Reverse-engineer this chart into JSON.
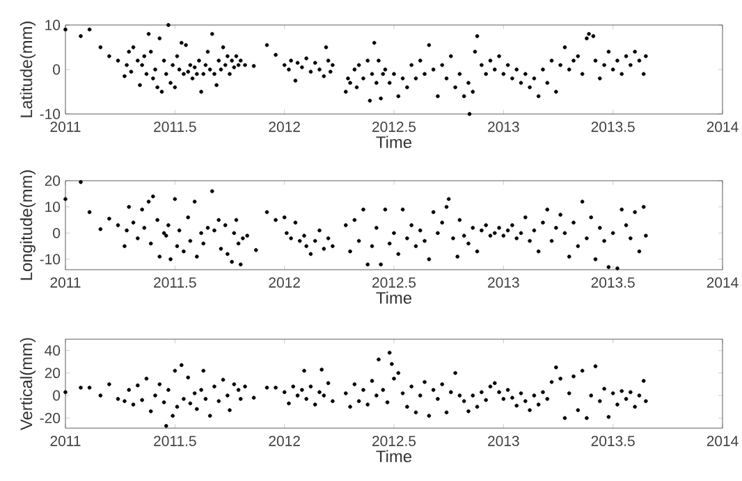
{
  "chart_data": [
    {
      "type": "scatter",
      "xlabel": "Time",
      "ylabel": "Latitude(mm)",
      "marker": "circle",
      "xlim": [
        2011,
        2014
      ],
      "xticks": [
        2011,
        2011.5,
        2012,
        2012.5,
        2013,
        2013.5,
        2014
      ],
      "ylim": [
        -10,
        10
      ],
      "yticks": [
        -10,
        0,
        10
      ],
      "series": [
        {
          "color": "#000000",
          "x": [
            2011.0,
            2011.07,
            2011.11,
            2011.16,
            2011.2,
            2011.24,
            2011.27,
            2011.28,
            2011.29,
            2011.3,
            2011.31,
            2011.33,
            2011.34,
            2011.35,
            2011.36,
            2011.37,
            2011.38,
            2011.39,
            2011.4,
            2011.41,
            2011.42,
            2011.43,
            2011.44,
            2011.45,
            2011.46,
            2011.47,
            2011.48,
            2011.49,
            2011.5,
            2011.51,
            2011.52,
            2011.53,
            2011.54,
            2011.55,
            2011.56,
            2011.57,
            2011.58,
            2011.59,
            2011.6,
            2011.61,
            2011.62,
            2011.63,
            2011.64,
            2011.65,
            2011.66,
            2011.67,
            2011.68,
            2011.69,
            2011.7,
            2011.71,
            2011.72,
            2011.73,
            2011.74,
            2011.75,
            2011.76,
            2011.77,
            2011.78,
            2011.79,
            2011.8,
            2011.82,
            2011.86,
            2011.92,
            2011.96,
            2012.0,
            2012.02,
            2012.03,
            2012.05,
            2012.06,
            2012.08,
            2012.1,
            2012.12,
            2012.14,
            2012.16,
            2012.18,
            2012.19,
            2012.2,
            2012.21,
            2012.22,
            2012.28,
            2012.29,
            2012.3,
            2012.32,
            2012.33,
            2012.34,
            2012.36,
            2012.38,
            2012.39,
            2012.4,
            2012.41,
            2012.42,
            2012.43,
            2012.44,
            2012.45,
            2012.46,
            2012.48,
            2012.5,
            2012.52,
            2012.54,
            2012.56,
            2012.58,
            2012.6,
            2012.62,
            2012.64,
            2012.66,
            2012.68,
            2012.7,
            2012.72,
            2012.74,
            2012.76,
            2012.78,
            2012.8,
            2012.82,
            2012.84,
            2012.845,
            2012.86,
            2012.87,
            2012.88,
            2012.9,
            2012.92,
            2012.94,
            2012.96,
            2012.98,
            2013.0,
            2013.02,
            2013.04,
            2013.06,
            2013.08,
            2013.1,
            2013.12,
            2013.14,
            2013.16,
            2013.18,
            2013.2,
            2013.22,
            2013.24,
            2013.26,
            2013.28,
            2013.3,
            2013.32,
            2013.34,
            2013.36,
            2013.38,
            2013.39,
            2013.41,
            2013.42,
            2013.44,
            2013.46,
            2013.48,
            2013.5,
            2013.52,
            2013.54,
            2013.56,
            2013.58,
            2013.6,
            2013.62,
            2013.64,
            2013.65
          ],
          "values": [
            9,
            7.5,
            9,
            5,
            3,
            2,
            -1.5,
            1,
            4,
            -0.5,
            5,
            2,
            -3.5,
            1,
            3,
            -1,
            8,
            4,
            -2,
            0,
            -4,
            7,
            -5,
            2,
            -1,
            10,
            -3,
            1,
            -4,
            3,
            0,
            6,
            -1,
            5.5,
            -0.5,
            1,
            -2,
            0.5,
            -1,
            2,
            -5,
            -1,
            1,
            4,
            0,
            8,
            -1,
            -3.5,
            2,
            0,
            5,
            1,
            3,
            -1,
            2,
            0.5,
            3,
            1,
            2,
            1,
            0.8,
            5.5,
            3.3,
            1,
            0,
            2,
            -2.5,
            1.5,
            0.5,
            2.5,
            -0.5,
            1.5,
            0,
            -1.5,
            5,
            2,
            -0.5,
            1,
            -5,
            -2,
            -3,
            0,
            -4,
            1,
            -2,
            2,
            -7,
            -1,
            6,
            -3,
            2,
            -6.5,
            -1,
            0,
            -3,
            -1,
            -6,
            -2,
            -4,
            1,
            -2,
            2,
            -1,
            5.5,
            0,
            -6,
            1,
            -2,
            3,
            -4,
            -1,
            -6,
            -3,
            -10,
            -5,
            4,
            7.5,
            1,
            -1,
            2,
            0,
            3,
            -1,
            1,
            -2,
            0,
            -3,
            -1,
            -4,
            -2,
            -6,
            0,
            -3,
            2,
            -5,
            1,
            5,
            0,
            2,
            3,
            -1,
            7,
            8,
            7.5,
            2,
            -2,
            1,
            4,
            0,
            2,
            -1,
            3,
            1,
            4,
            2,
            -1,
            3
          ]
        }
      ]
    },
    {
      "type": "scatter",
      "xlabel": "Time",
      "ylabel": "Longitude(mm)",
      "marker": "circle",
      "xlim": [
        2011,
        2014
      ],
      "xticks": [
        2011,
        2011.5,
        2012,
        2012.5,
        2013,
        2013.5,
        2014
      ],
      "ylim": [
        -14,
        20
      ],
      "yticks": [
        -10,
        0,
        10,
        20
      ],
      "series": [
        {
          "color": "#000000",
          "x": [
            2011.0,
            2011.07,
            2011.11,
            2011.16,
            2011.2,
            2011.24,
            2011.27,
            2011.28,
            2011.29,
            2011.31,
            2011.33,
            2011.35,
            2011.36,
            2011.38,
            2011.39,
            2011.4,
            2011.42,
            2011.43,
            2011.45,
            2011.46,
            2011.47,
            2011.48,
            2011.5,
            2011.51,
            2011.52,
            2011.54,
            2011.56,
            2011.57,
            2011.59,
            2011.6,
            2011.62,
            2011.63,
            2011.65,
            2011.67,
            2011.68,
            2011.7,
            2011.71,
            2011.73,
            2011.74,
            2011.76,
            2011.77,
            2011.78,
            2011.79,
            2011.8,
            2011.81,
            2011.83,
            2011.87,
            2011.92,
            2011.96,
            2012.0,
            2012.01,
            2012.03,
            2012.05,
            2012.07,
            2012.09,
            2012.1,
            2012.12,
            2012.14,
            2012.16,
            2012.18,
            2012.2,
            2012.22,
            2012.28,
            2012.3,
            2012.32,
            2012.34,
            2012.36,
            2012.38,
            2012.4,
            2012.42,
            2012.44,
            2012.46,
            2012.48,
            2012.5,
            2012.52,
            2012.54,
            2012.56,
            2012.58,
            2012.6,
            2012.62,
            2012.64,
            2012.66,
            2012.68,
            2012.7,
            2012.72,
            2012.74,
            2012.75,
            2012.77,
            2012.79,
            2012.8,
            2012.82,
            2012.84,
            2012.86,
            2012.88,
            2012.9,
            2012.92,
            2012.94,
            2012.96,
            2012.98,
            2013.0,
            2013.02,
            2013.04,
            2013.06,
            2013.08,
            2013.1,
            2013.12,
            2013.14,
            2013.16,
            2013.18,
            2013.2,
            2013.22,
            2013.24,
            2013.26,
            2013.28,
            2013.3,
            2013.32,
            2013.34,
            2013.36,
            2013.38,
            2013.4,
            2013.42,
            2013.44,
            2013.46,
            2013.48,
            2013.5,
            2013.52,
            2013.54,
            2013.56,
            2013.58,
            2013.6,
            2013.62,
            2013.64,
            2013.65
          ],
          "values": [
            13,
            19.5,
            8,
            1.5,
            5.5,
            3,
            -5,
            1,
            10,
            4,
            -2,
            9,
            2,
            12,
            -4,
            14,
            5,
            -9,
            0,
            -1,
            3,
            -10,
            13,
            -5,
            1,
            -7,
            6,
            -3,
            12,
            -9,
            0,
            -4,
            2,
            16,
            1,
            5,
            -6,
            3,
            -8,
            -11,
            0,
            5,
            -4,
            -12,
            -2,
            -1,
            -6.5,
            8,
            5,
            6,
            0,
            -2,
            4,
            -3,
            -1,
            -5,
            -8,
            -3,
            1,
            -6,
            -2,
            -5,
            3,
            -7,
            5,
            -3,
            9,
            -12,
            -5,
            2,
            -12,
            9,
            -4,
            0,
            -8,
            9,
            -2,
            3,
            -5,
            1,
            -3,
            -10,
            8,
            0,
            4,
            10,
            13,
            -2,
            -9,
            5,
            -1,
            -4,
            2,
            -7,
            1,
            3,
            -1,
            0,
            2,
            -1,
            1,
            3,
            -2,
            0,
            6,
            -3,
            1,
            -7,
            4,
            9,
            -3,
            2,
            7,
            0,
            -9,
            4,
            -5,
            12,
            -2,
            6,
            -10,
            2,
            -3,
            -13,
            0,
            -13.5,
            9,
            3,
            -2,
            8,
            -7,
            10,
            -1
          ]
        }
      ]
    },
    {
      "type": "scatter",
      "xlabel": "Time",
      "ylabel": "Vertical(mm)",
      "marker": "circle",
      "xlim": [
        2011,
        2014
      ],
      "xticks": [
        2011,
        2011.5,
        2012,
        2012.5,
        2013,
        2013.5,
        2014
      ],
      "ylim": [
        -29,
        50
      ],
      "yticks": [
        -20,
        0,
        20,
        40
      ],
      "series": [
        {
          "color": "#000000",
          "x": [
            2011.0,
            2011.07,
            2011.11,
            2011.16,
            2011.2,
            2011.24,
            2011.27,
            2011.29,
            2011.31,
            2011.33,
            2011.35,
            2011.37,
            2011.39,
            2011.41,
            2011.43,
            2011.45,
            2011.46,
            2011.47,
            2011.49,
            2011.5,
            2011.51,
            2011.53,
            2011.54,
            2011.56,
            2011.57,
            2011.59,
            2011.6,
            2011.62,
            2011.63,
            2011.64,
            2011.66,
            2011.68,
            2011.7,
            2011.72,
            2011.74,
            2011.75,
            2011.77,
            2011.79,
            2011.8,
            2011.82,
            2011.86,
            2011.92,
            2011.96,
            2012.0,
            2012.02,
            2012.04,
            2012.06,
            2012.08,
            2012.09,
            2012.1,
            2012.12,
            2012.14,
            2012.16,
            2012.17,
            2012.18,
            2012.2,
            2012.22,
            2012.28,
            2012.3,
            2012.32,
            2012.34,
            2012.36,
            2012.38,
            2012.4,
            2012.42,
            2012.43,
            2012.45,
            2012.47,
            2012.48,
            2012.49,
            2012.5,
            2012.52,
            2012.54,
            2012.56,
            2012.58,
            2012.6,
            2012.62,
            2012.64,
            2012.66,
            2012.68,
            2012.7,
            2012.72,
            2012.74,
            2012.76,
            2012.78,
            2012.8,
            2012.82,
            2012.84,
            2012.86,
            2012.88,
            2012.9,
            2012.92,
            2012.94,
            2012.96,
            2012.98,
            2013.0,
            2013.02,
            2013.04,
            2013.06,
            2013.08,
            2013.1,
            2013.12,
            2013.14,
            2013.16,
            2013.18,
            2013.2,
            2013.22,
            2013.24,
            2013.26,
            2013.28,
            2013.3,
            2013.32,
            2013.34,
            2013.36,
            2013.38,
            2013.4,
            2013.42,
            2013.44,
            2013.46,
            2013.48,
            2013.5,
            2013.52,
            2013.54,
            2013.56,
            2013.58,
            2013.6,
            2013.62,
            2013.64,
            2013.65
          ],
          "values": [
            3,
            7,
            7,
            0,
            10,
            -3,
            -5,
            5,
            -8,
            9,
            -4,
            15,
            -14,
            0,
            10,
            -6,
            -27,
            5,
            -18,
            22,
            -10,
            27,
            -3,
            16,
            -7,
            2,
            -12,
            5,
            22,
            -3,
            -18,
            8,
            -5,
            14,
            0,
            -13,
            10,
            5,
            -3,
            8,
            -2,
            7,
            7,
            3,
            -7,
            8,
            0,
            5,
            22,
            -3,
            8,
            -8,
            3,
            23,
            0,
            11,
            -5,
            2,
            -10,
            10,
            -5,
            5,
            -8,
            13,
            0,
            32,
            5,
            -6,
            38,
            28,
            15,
            20,
            2,
            -10,
            8,
            -15,
            0,
            12,
            -18,
            5,
            -3,
            10,
            -15,
            3,
            20,
            0,
            -5,
            -14,
            0,
            -10,
            3,
            -4,
            8,
            11,
            3,
            -3,
            5,
            -2,
            -9,
            2,
            -5,
            -13,
            0,
            -8,
            3,
            -3,
            12,
            25,
            15,
            -20,
            2,
            17,
            -13,
            22,
            -20,
            0,
            26,
            -5,
            6,
            -19,
            2,
            -8,
            4,
            -3,
            3,
            -10,
            0,
            13,
            -5
          ]
        }
      ]
    }
  ]
}
